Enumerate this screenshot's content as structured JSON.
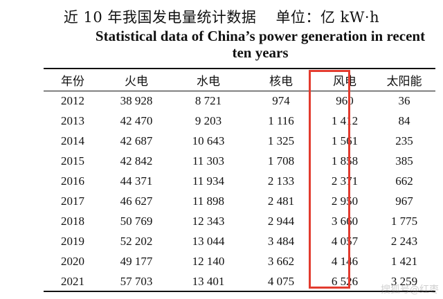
{
  "header": {
    "title_cn": "近 10 年我国发电量统计数据",
    "unit_label": "单位：亿 kW·h",
    "title_en_line1": "Statistical data of China’s power generation in recent",
    "title_en_line2": "ten years"
  },
  "table": {
    "columns": [
      "年份",
      "火电",
      "水电",
      "核电",
      "风电",
      "太阳能"
    ],
    "rows": [
      [
        "2012",
        "38 928",
        "8 721",
        "974",
        "960",
        "36"
      ],
      [
        "2013",
        "42 470",
        "9 203",
        "1 116",
        "1 412",
        "84"
      ],
      [
        "2014",
        "42 687",
        "10 643",
        "1 325",
        "1 561",
        "235"
      ],
      [
        "2015",
        "42 842",
        "11 303",
        "1 708",
        "1 858",
        "385"
      ],
      [
        "2016",
        "44 371",
        "11 934",
        "2 133",
        "2 371",
        "662"
      ],
      [
        "2017",
        "46 627",
        "11 898",
        "2 481",
        "2 950",
        "967"
      ],
      [
        "2018",
        "50 769",
        "12 343",
        "2 944",
        "3 660",
        "1 775"
      ],
      [
        "2019",
        "52 202",
        "13 044",
        "3 484",
        "4 057",
        "2 243"
      ],
      [
        "2020",
        "49 177",
        "12 140",
        "3 662",
        "4 146",
        "1 421"
      ],
      [
        "2021",
        "57 703",
        "13 401",
        "4 075",
        "6 526",
        "3 259"
      ]
    ],
    "highlighted_column": "风电",
    "highlight_color": "#e23b2e"
  },
  "watermark": "搜狐号@红枣"
}
